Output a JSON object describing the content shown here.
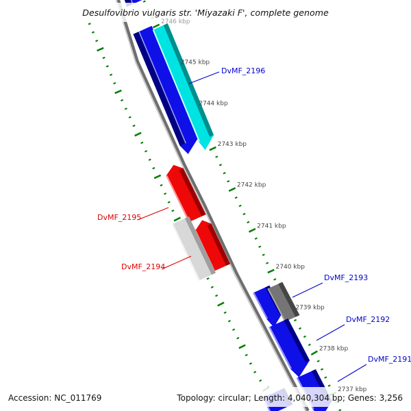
{
  "title": "Desulfovibrio vulgaris str. 'Miyazaki F', complete genome",
  "footer": {
    "accession": "Accession: NC_011769",
    "stats": "Topology: circular; Length: 4,040,304 bp; Genes: 3,256"
  },
  "scale": {
    "unit": "kbp",
    "major_interval_kbp": 1,
    "minor_interval_kbp": 0.2,
    "visible_range_kbp": [
      2736.4,
      2746.8
    ],
    "ticks": [
      {
        "kbp": 2746,
        "label": "2746 kbp",
        "faded": true
      },
      {
        "kbp": 2745,
        "label": "2745 kbp"
      },
      {
        "kbp": 2744,
        "label": "2744 kbp"
      },
      {
        "kbp": 2743,
        "label": "2743 kbp"
      },
      {
        "kbp": 2742,
        "label": "2742 kbp"
      },
      {
        "kbp": 2741,
        "label": "2741 kbp"
      },
      {
        "kbp": 2740,
        "label": "2740 kbp"
      },
      {
        "kbp": 2739,
        "label": "2739 kbp"
      },
      {
        "kbp": 2738,
        "label": "2738 kbp"
      },
      {
        "kbp": 2737,
        "label": "2737 kbp"
      }
    ]
  },
  "features": [
    {
      "id": "gene-top-partial",
      "label": null,
      "color_key": "blue",
      "side": "right",
      "lane": 1,
      "start_kbp": 2746.47,
      "end_kbp": 2746.78,
      "arrow": null
    },
    {
      "id": "gene-unnamed-a",
      "label": null,
      "color_key": "blue",
      "side": "right",
      "lane": 1,
      "start_kbp": 2742.9,
      "end_kbp": 2745.8,
      "arrow": "start"
    },
    {
      "id": "DvMF_2196",
      "label": "DvMF_2196",
      "color_key": "cyan",
      "side": "right",
      "lane": 2,
      "start_kbp": 2743.0,
      "end_kbp": 2745.9,
      "arrow": "start"
    },
    {
      "id": "DvMF_2195",
      "label": "DvMF_2195",
      "color_key": "red",
      "side": "left",
      "lane": 1,
      "start_kbp": 2741.2,
      "end_kbp": 2742.5,
      "arrow": "end"
    },
    {
      "id": "gene-unnamed-b",
      "label": null,
      "color_key": "red",
      "side": "left",
      "lane": 1,
      "start_kbp": 2740.0,
      "end_kbp": 2741.15,
      "arrow": "end"
    },
    {
      "id": "DvMF_2194",
      "label": "DvMF_2194",
      "color_key": "lightgray",
      "side": "left",
      "lane": 2,
      "start_kbp": 2739.77,
      "end_kbp": 2741.15,
      "arrow": null
    },
    {
      "id": "gene-unnamed-c",
      "label": null,
      "color_key": "blue",
      "side": "right",
      "lane": 1,
      "start_kbp": 2738.66,
      "end_kbp": 2739.47,
      "arrow": "start"
    },
    {
      "id": "DvMF_2193",
      "label": "DvMF_2193",
      "color_key": "darkgray",
      "side": "right",
      "lane": 2,
      "start_kbp": 2738.76,
      "end_kbp": 2739.57,
      "arrow": null
    },
    {
      "id": "DvMF_2192",
      "label": "DvMF_2192",
      "color_key": "blue",
      "side": "right",
      "lane": 1,
      "start_kbp": 2737.44,
      "end_kbp": 2738.63,
      "arrow": "start"
    },
    {
      "id": "DvMF_2191",
      "label": "DvMF_2191",
      "color_key": "blue",
      "side": "right",
      "lane": 1,
      "start_kbp": 2736.45,
      "end_kbp": 2737.39,
      "arrow": "start"
    },
    {
      "id": "gene-bottom-partial",
      "label": null,
      "color_key": "blue",
      "side": "left",
      "lane": 1,
      "start_kbp": 2736.5,
      "end_kbp": 2736.9,
      "arrow": null
    }
  ],
  "palette": {
    "blue": {
      "main": "#0f0fe8",
      "dark": "#000085",
      "light": "#9a9af7"
    },
    "cyan": {
      "main": "#00e3e3",
      "dark": "#008d8d",
      "light": "#d8ffff"
    },
    "red": {
      "main": "#ee0808",
      "dark": "#9d0000",
      "light": "#ff9999"
    },
    "lightgray": {
      "main": "#d8d8d8",
      "dark": "#9f9f9f",
      "light": "#f6f6f6"
    },
    "darkgray": {
      "main": "#757575",
      "dark": "#454545",
      "light": "#ababab"
    },
    "label_blue": "#0000cc",
    "label_red": "#dd0000",
    "tick_green": "#008000",
    "tick_label": "#444444",
    "tick_label_faded": "#999999",
    "backbone": "#6e6e6e",
    "backbone_highlight": "#cfcfcf"
  }
}
